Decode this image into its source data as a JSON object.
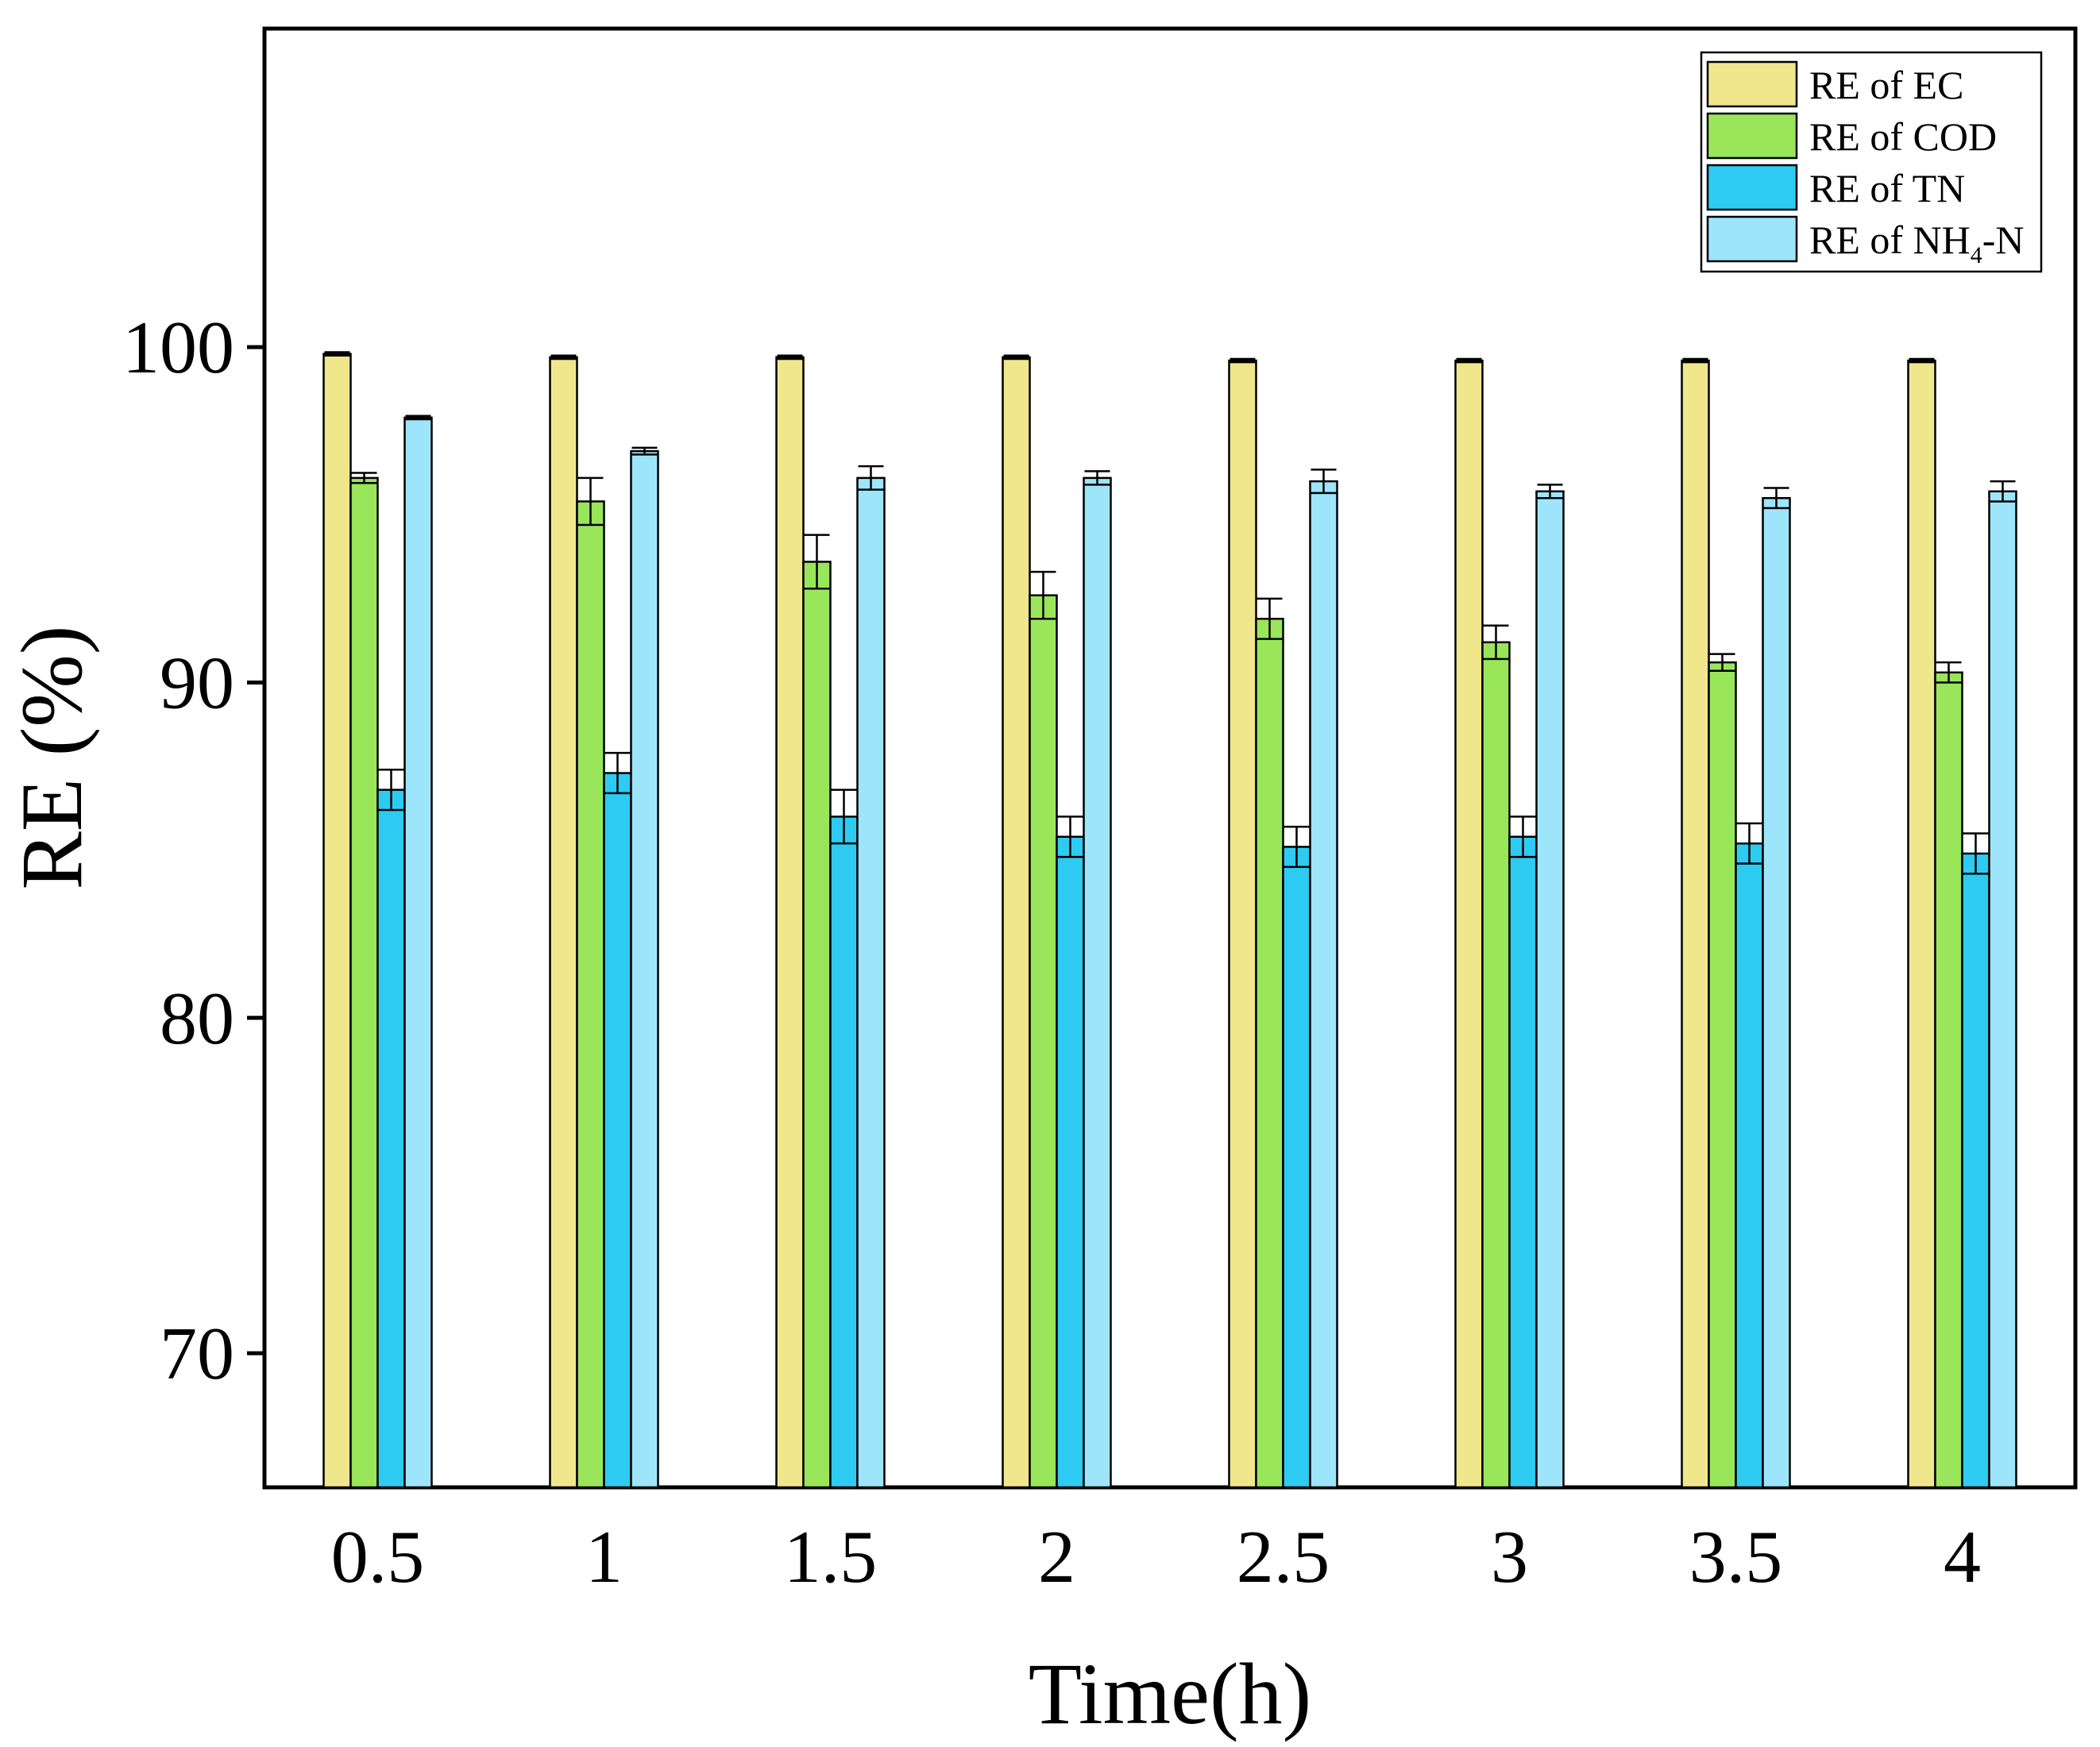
{
  "chart_data": {
    "type": "bar",
    "xlabel": "Time(h)",
    "ylabel": "RE (%)",
    "ylim": [
      66,
      109.5
    ],
    "yticks": [
      70,
      80,
      90,
      100
    ],
    "ytick_labels": [
      "70",
      "80",
      "90",
      "100"
    ],
    "categories": [
      "0.5",
      "1",
      "1.5",
      "2",
      "2.5",
      "3",
      "3.5",
      "4"
    ],
    "series": [
      {
        "name": "RE of EC",
        "color": "#F0E68C",
        "values": [
          99.8,
          99.7,
          99.7,
          99.7,
          99.6,
          99.6,
          99.6,
          99.6
        ],
        "errors": [
          0.05,
          0.05,
          0.05,
          0.05,
          0.05,
          0.05,
          0.05,
          0.05
        ]
      },
      {
        "name": "RE of COD",
        "color": "#9AE65A",
        "values": [
          96.1,
          95.4,
          93.6,
          92.6,
          91.9,
          91.2,
          90.6,
          90.3
        ],
        "errors": [
          0.15,
          0.7,
          0.8,
          0.7,
          0.6,
          0.5,
          0.25,
          0.3
        ]
      },
      {
        "name": "RE of TN",
        "color": "#2DCBF2",
        "values": [
          86.8,
          87.3,
          86.0,
          85.4,
          85.1,
          85.4,
          85.2,
          84.9
        ],
        "errors": [
          0.6,
          0.6,
          0.8,
          0.6,
          0.6,
          0.6,
          0.6,
          0.6
        ]
      },
      {
        "name": "RE of NH4-N",
        "legend_main": "RE of NH",
        "legend_sub": "4",
        "legend_tail": "-N",
        "color": "#9DE5FB",
        "values": [
          97.9,
          96.9,
          96.1,
          96.1,
          96.0,
          95.7,
          95.5,
          95.7
        ],
        "errors": [
          0.05,
          0.1,
          0.35,
          0.2,
          0.35,
          0.2,
          0.3,
          0.3
        ]
      }
    ],
    "legend_position": "top-right",
    "grid": false
  }
}
